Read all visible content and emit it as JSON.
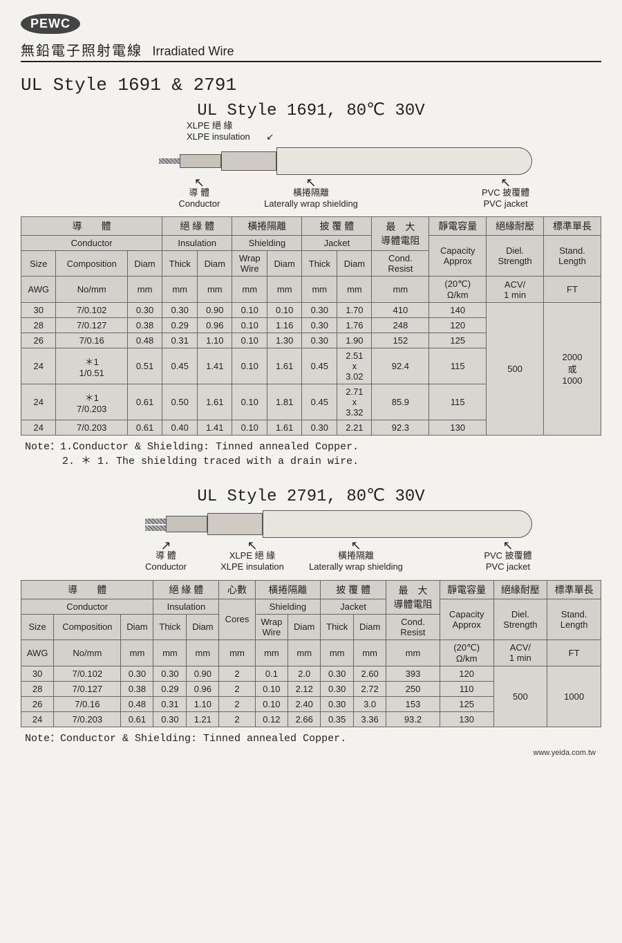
{
  "logo": "PEWC",
  "header": {
    "cn": "無鉛電子照射電線",
    "en": "Irradiated Wire"
  },
  "mainTitle": "UL Style 1691 & 2791",
  "sec1": {
    "title": "UL Style 1691, 80℃ 30V",
    "labels": {
      "xlpe_cn": "XLPE 絕 緣",
      "xlpe_en": "XLPE insulation",
      "cond_cn": "導 體",
      "cond_en": "Conductor",
      "wrap_cn": "橫捲隔離",
      "wrap_en": "Laterally wrap shielding",
      "jacket_cn": "PVC 披覆體",
      "jacket_en": "PVC jacket"
    },
    "hdr_cn": {
      "conductor": "導　　體",
      "insulation": "絕 緣 體",
      "shielding": "橫捲隔離",
      "jacket": "披 覆 體",
      "cond_resist": "最　大\n導體電阻",
      "capacity": "靜電容量",
      "diel": "絕緣耐壓",
      "length": "標準單長"
    },
    "hdr_en": {
      "conductor": "Conductor",
      "insulation": "Insulation",
      "shielding": "Shielding",
      "jacket": "Jacket",
      "cond_resist": "Cond.\nResist",
      "capacity": "Capacity\nApprox",
      "diel": "Diel.\nStrength",
      "length": "Stand.\nLength",
      "size": "Size",
      "comp": "Composition",
      "diam": "Diam",
      "thick": "Thick",
      "wrap": "Wrap\nWire"
    },
    "hdr_unit": {
      "awg": "AWG",
      "nomm": "No/mm",
      "mm": "mm",
      "capacity": "(20℃)\nΩ/km",
      "acv": "ACV/\n1 min",
      "ft": "FT"
    },
    "rows": [
      {
        "s": "30",
        "c": "7/0.102",
        "d": "0.30",
        "it": "0.30",
        "id": "0.90",
        "ww": "0.10",
        "sd": "0.10",
        "jt": "0.30",
        "jd": "1.70",
        "cr": "410",
        "cap": "140"
      },
      {
        "s": "28",
        "c": "7/0.127",
        "d": "0.38",
        "it": "0.29",
        "id": "0.96",
        "ww": "0.10",
        "sd": "1.16",
        "jt": "0.30",
        "jd": "1.76",
        "cr": "248",
        "cap": "120"
      },
      {
        "s": "26",
        "c": "7/0.16",
        "d": "0.48",
        "it": "0.31",
        "id": "1.10",
        "ww": "0.10",
        "sd": "1.30",
        "jt": "0.30",
        "jd": "1.90",
        "cr": "152",
        "cap": "125"
      },
      {
        "s": "24",
        "c": "＊1\n1/0.51",
        "d": "0.51",
        "it": "0.45",
        "id": "1.41",
        "ww": "0.10",
        "sd": "1.61",
        "jt": "0.45",
        "jd": "2.51\nx\n3.02",
        "cr": "92.4",
        "cap": "115"
      },
      {
        "s": "24",
        "c": "＊1\n7/0.203",
        "d": "0.61",
        "it": "0.50",
        "id": "1.61",
        "ww": "0.10",
        "sd": "1.81",
        "jt": "0.45",
        "jd": "2.71\nx\n3.32",
        "cr": "85.9",
        "cap": "115"
      },
      {
        "s": "24",
        "c": "7/0.203",
        "d": "0.61",
        "it": "0.40",
        "id": "1.41",
        "ww": "0.10",
        "sd": "1.61",
        "jt": "0.30",
        "jd": "2.21",
        "cr": "92.3",
        "cap": "130"
      }
    ],
    "diel": "500",
    "length": "2000\n或\n1000",
    "note": "Note：1.Conductor & Shielding: Tinned annealed Copper.\n　　　 2. ＊ 1. The shielding traced with a drain wire."
  },
  "sec2": {
    "title": "UL Style 2791, 80℃ 30V",
    "labels": {
      "cond_cn": "導 體",
      "cond_en": "Conductor",
      "xlpe_cn": "XLPE 絕 緣",
      "xlpe_en": "XLPE insulation",
      "wrap_cn": "橫捲隔離",
      "wrap_en": "Laterally wrap shielding",
      "jacket_cn": "PVC 披覆體",
      "jacket_en": "PVC jacket"
    },
    "hdr_cn": {
      "conductor": "導　　體",
      "insulation": "絕 緣 體",
      "cores": "心數",
      "shielding": "橫捲隔離",
      "jacket": "披 覆 體",
      "cond_resist": "最　大\n導體電阻",
      "capacity": "靜電容量",
      "diel": "絕緣耐壓",
      "length": "標準單長"
    },
    "hdr_en": {
      "conductor": "Conductor",
      "insulation": "Insulation",
      "cores": "Cores",
      "shielding": "Shielding",
      "jacket": "Jacket",
      "cond_resist": "Cond.\nResist",
      "capacity": "Capacity\nApprox",
      "diel": "Diel.\nStrength",
      "length": "Stand.\nLength",
      "size": "Size",
      "comp": "Composition",
      "diam": "Diam",
      "thick": "Thick",
      "wrap": "Wrap\nWire"
    },
    "hdr_unit": {
      "awg": "AWG",
      "nomm": "No/mm",
      "mm": "mm",
      "capacity": "(20℃)\nΩ/km",
      "acv": "ACV/\n1 min",
      "ft": "FT"
    },
    "rows": [
      {
        "s": "30",
        "c": "7/0.102",
        "d": "0.30",
        "it": "0.30",
        "id": "0.90",
        "cores": "2",
        "ww": "0.1",
        "sd": "2.0",
        "jt": "0.30",
        "jd": "2.60",
        "cr": "393",
        "cap": "120"
      },
      {
        "s": "28",
        "c": "7/0.127",
        "d": "0.38",
        "it": "0.29",
        "id": "0.96",
        "cores": "2",
        "ww": "0.10",
        "sd": "2.12",
        "jt": "0.30",
        "jd": "2.72",
        "cr": "250",
        "cap": "110"
      },
      {
        "s": "26",
        "c": "7/0.16",
        "d": "0.48",
        "it": "0.31",
        "id": "1.10",
        "cores": "2",
        "ww": "0.10",
        "sd": "2.40",
        "jt": "0.30",
        "jd": "3.0",
        "cr": "153",
        "cap": "125"
      },
      {
        "s": "24",
        "c": "7/0.203",
        "d": "0.61",
        "it": "0.30",
        "id": "1.21",
        "cores": "2",
        "ww": "0.12",
        "sd": "2.66",
        "jt": "0.35",
        "jd": "3.36",
        "cr": "93.2",
        "cap": "130"
      }
    ],
    "diel": "500",
    "length": "1000",
    "note": "Note：Conductor & Shielding: Tinned annealed Copper."
  },
  "footer": "www.yeida.com.tw",
  "colors": {
    "page_bg": "#f4f2ee",
    "table_bg": "#d9d6d1",
    "border": "#666666",
    "jacket": "#e8e5df",
    "shield": "#cfcbc4",
    "insul": "#c7c2ba"
  }
}
